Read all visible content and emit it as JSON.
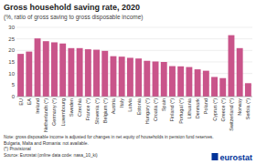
{
  "chart_data": {
    "type": "bar",
    "title": "Gross household saving rate, 2020",
    "subtitle": "(%, ratio of gross saving to gross disposable income)",
    "categories": [
      "EU",
      "EA",
      "Ireland",
      "Netherlands (*)",
      "Germany (*)",
      "Luxembourg",
      "Sweden",
      "Czechia",
      "France (*)",
      "Slovenia (*)",
      "Belgium (*)",
      "Austria",
      "Italy",
      "Latvia",
      "Estonia",
      "Hungary (*)",
      "Croatia (*)",
      "Spain",
      "Finland (*)",
      "Portugal (*)",
      "Lithuania",
      "Denmark",
      "Poland",
      "Cyprus (*)",
      "Greece (*)",
      "Switzerland (*)",
      "Norway",
      "Serbia (*)"
    ],
    "values": [
      18.5,
      19.5,
      25.2,
      24.0,
      23.5,
      23.0,
      21.0,
      21.0,
      20.5,
      20.3,
      19.8,
      17.5,
      17.3,
      16.8,
      16.5,
      15.5,
      15.2,
      15.0,
      13.2,
      13.1,
      12.8,
      11.8,
      11.2,
      8.5,
      8.0,
      26.6,
      21.0,
      5.8
    ],
    "color": "#c9548a",
    "ylim": [
      0,
      30
    ],
    "yticks": [
      0,
      5,
      10,
      15,
      20,
      25,
      30
    ],
    "grid": true,
    "annotations": [
      "Note: gross disposable income is adjusted for changes in net equity of households in pension fund reserves.",
      "Bulgaria, Malta and Romania: not available.",
      "(*) Provisional",
      "Source: Eurostat (online data code: nasa_10_ki)",
      "eurostat"
    ]
  }
}
